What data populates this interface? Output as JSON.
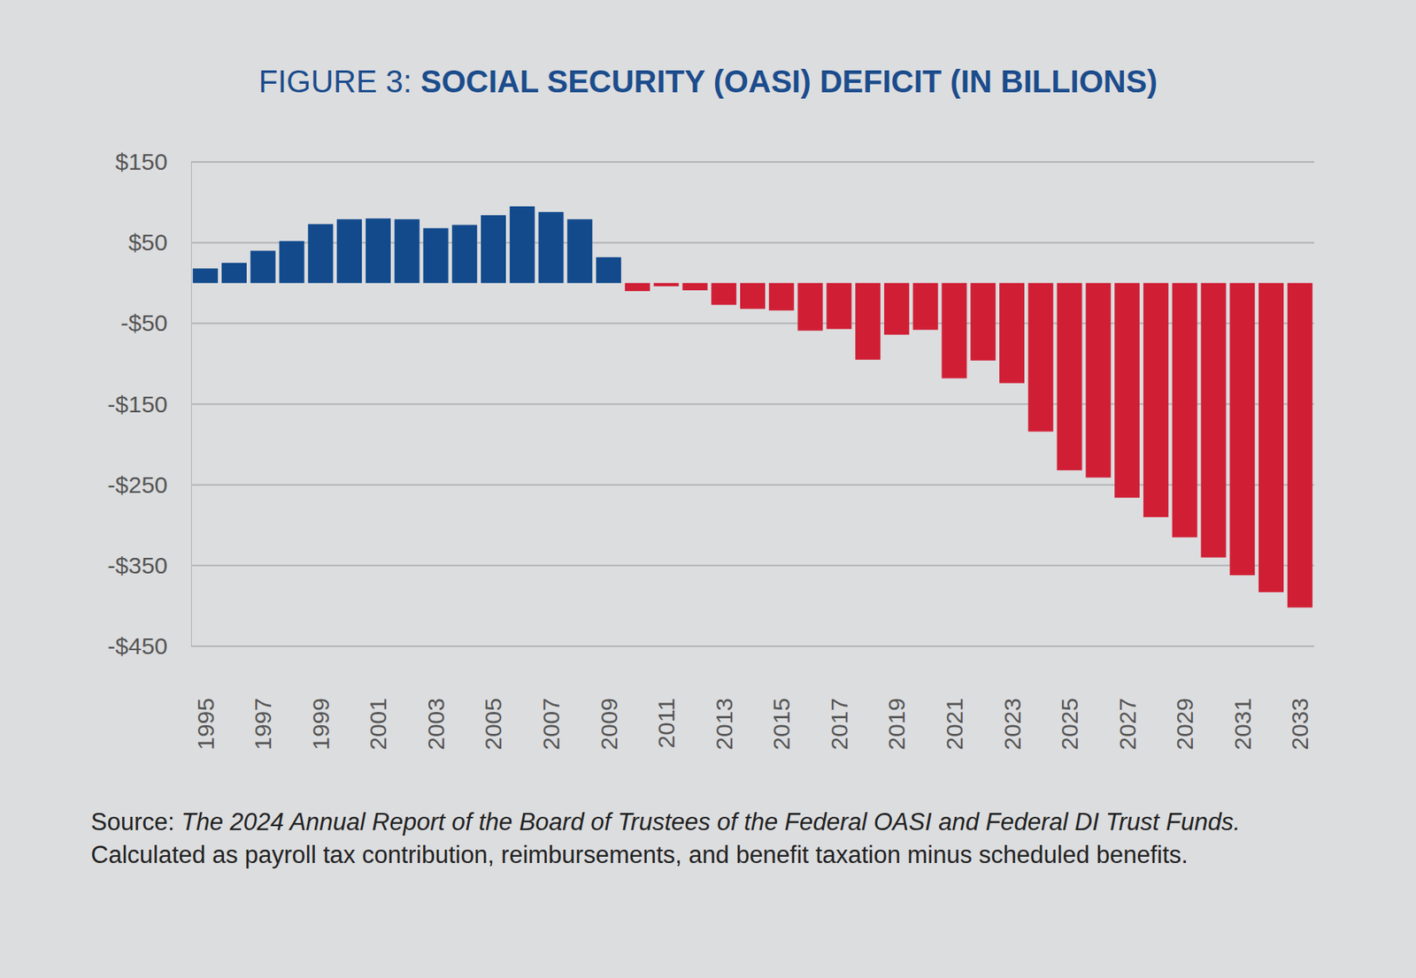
{
  "chart_data": {
    "type": "bar",
    "title": "FIGURE 3: SOCIAL SECURITY (OASI) DEFICIT (IN BILLIONS)",
    "source": {
      "label": "Source:",
      "title": "The 2024 Annual Report of the Board of Trustees of the Federal OASI and Federal DI Trust Funds.",
      "note": "Calculated as payroll tax contribution, reimbursements, and benefit taxation minus scheduled benefits."
    },
    "categories": [
      "1995",
      null,
      "1997",
      null,
      "1999",
      null,
      "2001",
      null,
      "2003",
      null,
      "2005",
      null,
      "2007",
      null,
      "2009",
      null,
      "2011",
      null,
      "2013",
      null,
      "2015",
      null,
      "2017",
      null,
      "2019",
      null,
      "2021",
      null,
      "2023",
      null,
      "2025",
      null,
      "2027",
      null,
      "2029",
      null,
      "2031",
      null,
      "2033"
    ],
    "values": [
      18,
      25,
      40,
      52,
      73,
      79,
      80,
      79,
      68,
      72,
      84,
      95,
      88,
      79,
      32,
      -10,
      -4,
      -9,
      -27,
      -32,
      -34,
      -59,
      -57,
      -95,
      -64,
      -58,
      -118,
      -96,
      -124,
      -184,
      -232,
      -241,
      -266,
      -290,
      -315,
      -340,
      -362,
      -383,
      -402
    ],
    "colors": [
      "#124a8c",
      "#124a8c",
      "#124a8c",
      "#124a8c",
      "#124a8c",
      "#124a8c",
      "#124a8c",
      "#124a8c",
      "#124a8c",
      "#124a8c",
      "#124a8c",
      "#124a8c",
      "#124a8c",
      "#124a8c",
      "#124a8c",
      "#d01f35",
      "#d01f35",
      "#d01f35",
      "#d01f35",
      "#d01f35",
      "#d01f35",
      "#d01f35",
      "#d01f35",
      "#d01f35",
      "#d01f35",
      "#d01f35",
      "#d01f35",
      "#d01f35",
      "#d01f35",
      "#d01f35",
      "#d01f35",
      "#d01f35",
      "#d01f35",
      "#d01f35",
      "#d01f35",
      "#d01f35",
      "#d01f35",
      "#d01f35",
      "#d01f35"
    ],
    "ylim": [
      -450,
      150
    ],
    "yticks": [
      {
        "value": -450,
        "label": "-$450"
      },
      {
        "value": -350,
        "label": "-$350"
      },
      {
        "value": -250,
        "label": "-$250"
      },
      {
        "value": -150,
        "label": "-$150"
      },
      {
        "value": -50,
        "label": "-$50"
      },
      {
        "value": 50,
        "label": "$50"
      },
      {
        "value": 150,
        "label": "$150"
      }
    ],
    "grid": true
  }
}
